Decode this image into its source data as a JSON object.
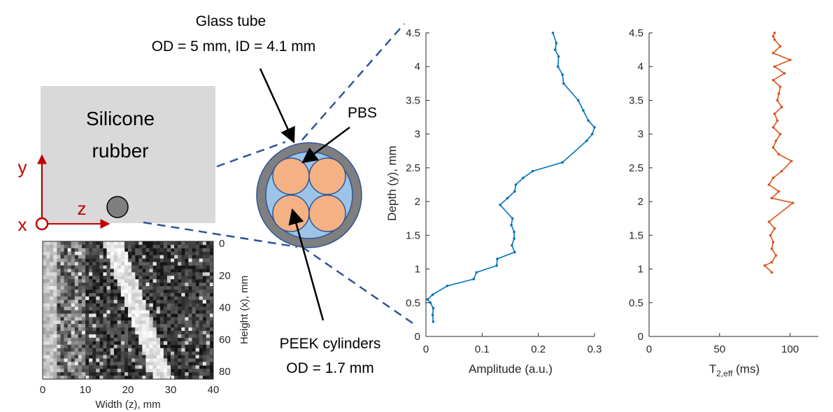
{
  "annotations": {
    "glass_tube_title": "Glass tube",
    "glass_tube_dims": "OD = 5 mm, ID = 4.1 mm",
    "pbs_label": "PBS",
    "peek_title": "PEEK cylinders",
    "peek_dims": "OD = 1.7 mm",
    "silicone_line1": "Silicone",
    "silicone_line2": "rubber",
    "axis_y": "y",
    "axis_z": "z",
    "axis_x": "x"
  },
  "colors": {
    "rubber_fill": "#d9d9d9",
    "tube_wall": "#7f7f7f",
    "pbs_fill": "#9dc3e6",
    "peek_fill": "#f4b183",
    "amplitude_line": "#0072bd",
    "t2_line": "#d95319",
    "axis_arrow": "#c00000",
    "dashed_line": "#2f5597"
  },
  "mri": {
    "xlabel": "Width (z), mm",
    "ylabel": "Height (x), mm",
    "xticks": [
      "0",
      "10",
      "20",
      "30",
      "40"
    ],
    "yticks": [
      "0",
      "20",
      "40",
      "60",
      "80"
    ]
  },
  "chart_data": [
    {
      "type": "line",
      "xlabel": "Amplitude (a.u.)",
      "ylabel": "Depth (y), mm",
      "xlim": [
        0,
        0.3
      ],
      "ylim": [
        0,
        4.5
      ],
      "xticks": [
        "0",
        "0.1",
        "0.2",
        "0.3"
      ],
      "yticks": [
        "0",
        "0.5",
        "1",
        "1.5",
        "2",
        "2.5",
        "3",
        "3.5",
        "4",
        "4.5"
      ],
      "x": [
        0.013,
        0.012,
        0.013,
        0.008,
        0.003,
        0.012,
        0.038,
        0.085,
        0.09,
        0.126,
        0.127,
        0.158,
        0.153,
        0.157,
        0.157,
        0.152,
        0.154,
        0.132,
        0.145,
        0.158,
        0.16,
        0.173,
        0.19,
        0.243,
        0.286,
        0.296,
        0.3,
        0.289,
        0.28,
        0.271,
        0.245,
        0.243,
        0.235,
        0.236,
        0.23,
        0.232,
        0.226
      ],
      "y": [
        0.22,
        0.32,
        0.42,
        0.5,
        0.55,
        0.62,
        0.75,
        0.85,
        0.95,
        1.05,
        1.15,
        1.25,
        1.35,
        1.45,
        1.55,
        1.65,
        1.75,
        1.95,
        2.05,
        2.15,
        2.25,
        2.35,
        2.45,
        2.58,
        2.9,
        3.0,
        3.1,
        3.2,
        3.35,
        3.5,
        3.75,
        3.88,
        4.0,
        4.15,
        4.25,
        4.35,
        4.5
      ]
    },
    {
      "type": "line",
      "xlabel": "T2,eff (ms)",
      "ylabel": "",
      "xlim": [
        0,
        120
      ],
      "ylim": [
        0,
        4.5
      ],
      "xticks": [
        "0",
        "50",
        "100"
      ],
      "yticks": [
        "0",
        "0.5",
        "1",
        "1.5",
        "2",
        "2.5",
        "3",
        "3.5",
        "4",
        "4.5"
      ],
      "x": [
        87,
        82,
        87,
        90,
        87,
        88,
        86,
        89,
        85,
        102,
        87,
        92,
        85,
        88,
        94,
        101,
        92,
        88,
        90,
        93,
        88,
        91,
        89,
        94,
        91,
        92,
        93,
        88,
        96,
        89,
        100,
        88,
        93,
        89,
        88,
        89
      ],
      "y": [
        0.95,
        1.05,
        1.1,
        1.2,
        1.3,
        1.4,
        1.5,
        1.6,
        1.7,
        1.98,
        2.05,
        2.15,
        2.25,
        2.35,
        2.45,
        2.6,
        2.7,
        2.8,
        2.9,
        3.0,
        3.1,
        3.2,
        3.3,
        3.4,
        3.5,
        3.6,
        3.7,
        3.8,
        3.9,
        4.0,
        4.1,
        4.2,
        4.3,
        4.4,
        4.45,
        4.5
      ]
    }
  ]
}
